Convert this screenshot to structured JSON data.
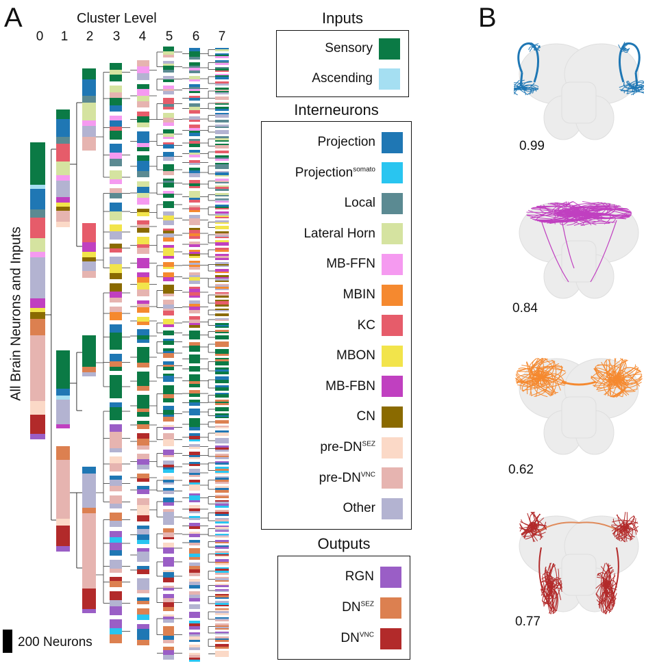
{
  "panel_a": {
    "letter": "A",
    "cluster_title": "Cluster Level",
    "levels": [
      "0",
      "1",
      "2",
      "3",
      "4",
      "5",
      "6",
      "7"
    ],
    "y_label": "All Brain Neurons and Inputs",
    "scale_label": "200 Neurons"
  },
  "legend": {
    "inputs_title": "Inputs",
    "inputs": [
      {
        "label": "Sensory",
        "sup": "",
        "color": "#0b7a45"
      },
      {
        "label": "Ascending",
        "sup": "",
        "color": "#a5dff2"
      }
    ],
    "interneurons_title": "Interneurons",
    "interneurons": [
      {
        "label": "Projection",
        "sup": "",
        "color": "#1f77b4"
      },
      {
        "label": "Projection",
        "sup": "somato",
        "color": "#29c5f0"
      },
      {
        "label": "Local",
        "sup": "",
        "color": "#5b8a92"
      },
      {
        "label": "Lateral Horn",
        "sup": "",
        "color": "#d5e3a0"
      },
      {
        "label": "MB-FFN",
        "sup": "",
        "color": "#f59af0"
      },
      {
        "label": "MBIN",
        "sup": "",
        "color": "#f5892f"
      },
      {
        "label": "KC",
        "sup": "",
        "color": "#e65c6a"
      },
      {
        "label": "MBON",
        "sup": "",
        "color": "#f2e44b"
      },
      {
        "label": "MB-FBN",
        "sup": "",
        "color": "#c040c0"
      },
      {
        "label": "CN",
        "sup": "",
        "color": "#8a6a00"
      },
      {
        "label": "pre-DN",
        "sup": "SEZ",
        "color": "#fbd9c7"
      },
      {
        "label": "pre-DN",
        "sup": "VNC",
        "color": "#e6b4b0"
      },
      {
        "label": "Other",
        "sup": "",
        "color": "#b3b3d1"
      }
    ],
    "outputs_title": "Outputs",
    "outputs": [
      {
        "label": "RGN",
        "sup": "",
        "color": "#9a5ec6"
      },
      {
        "label": "DN",
        "sup": "SEZ",
        "color": "#dc8050"
      },
      {
        "label": "DN",
        "sup": "VNC",
        "color": "#b22a2a"
      }
    ]
  },
  "panel_b": {
    "letter": "B",
    "examples": [
      {
        "score": "0.99",
        "color": "#1f77b4",
        "shape": "projection"
      },
      {
        "score": "0.84",
        "color": "#c040c0",
        "shape": "mbfbn"
      },
      {
        "score": "0.62",
        "color": "#f5892f",
        "shape": "mbin"
      },
      {
        "score": "0.77",
        "color": "#b22a2a",
        "shape": "dn"
      }
    ]
  }
}
